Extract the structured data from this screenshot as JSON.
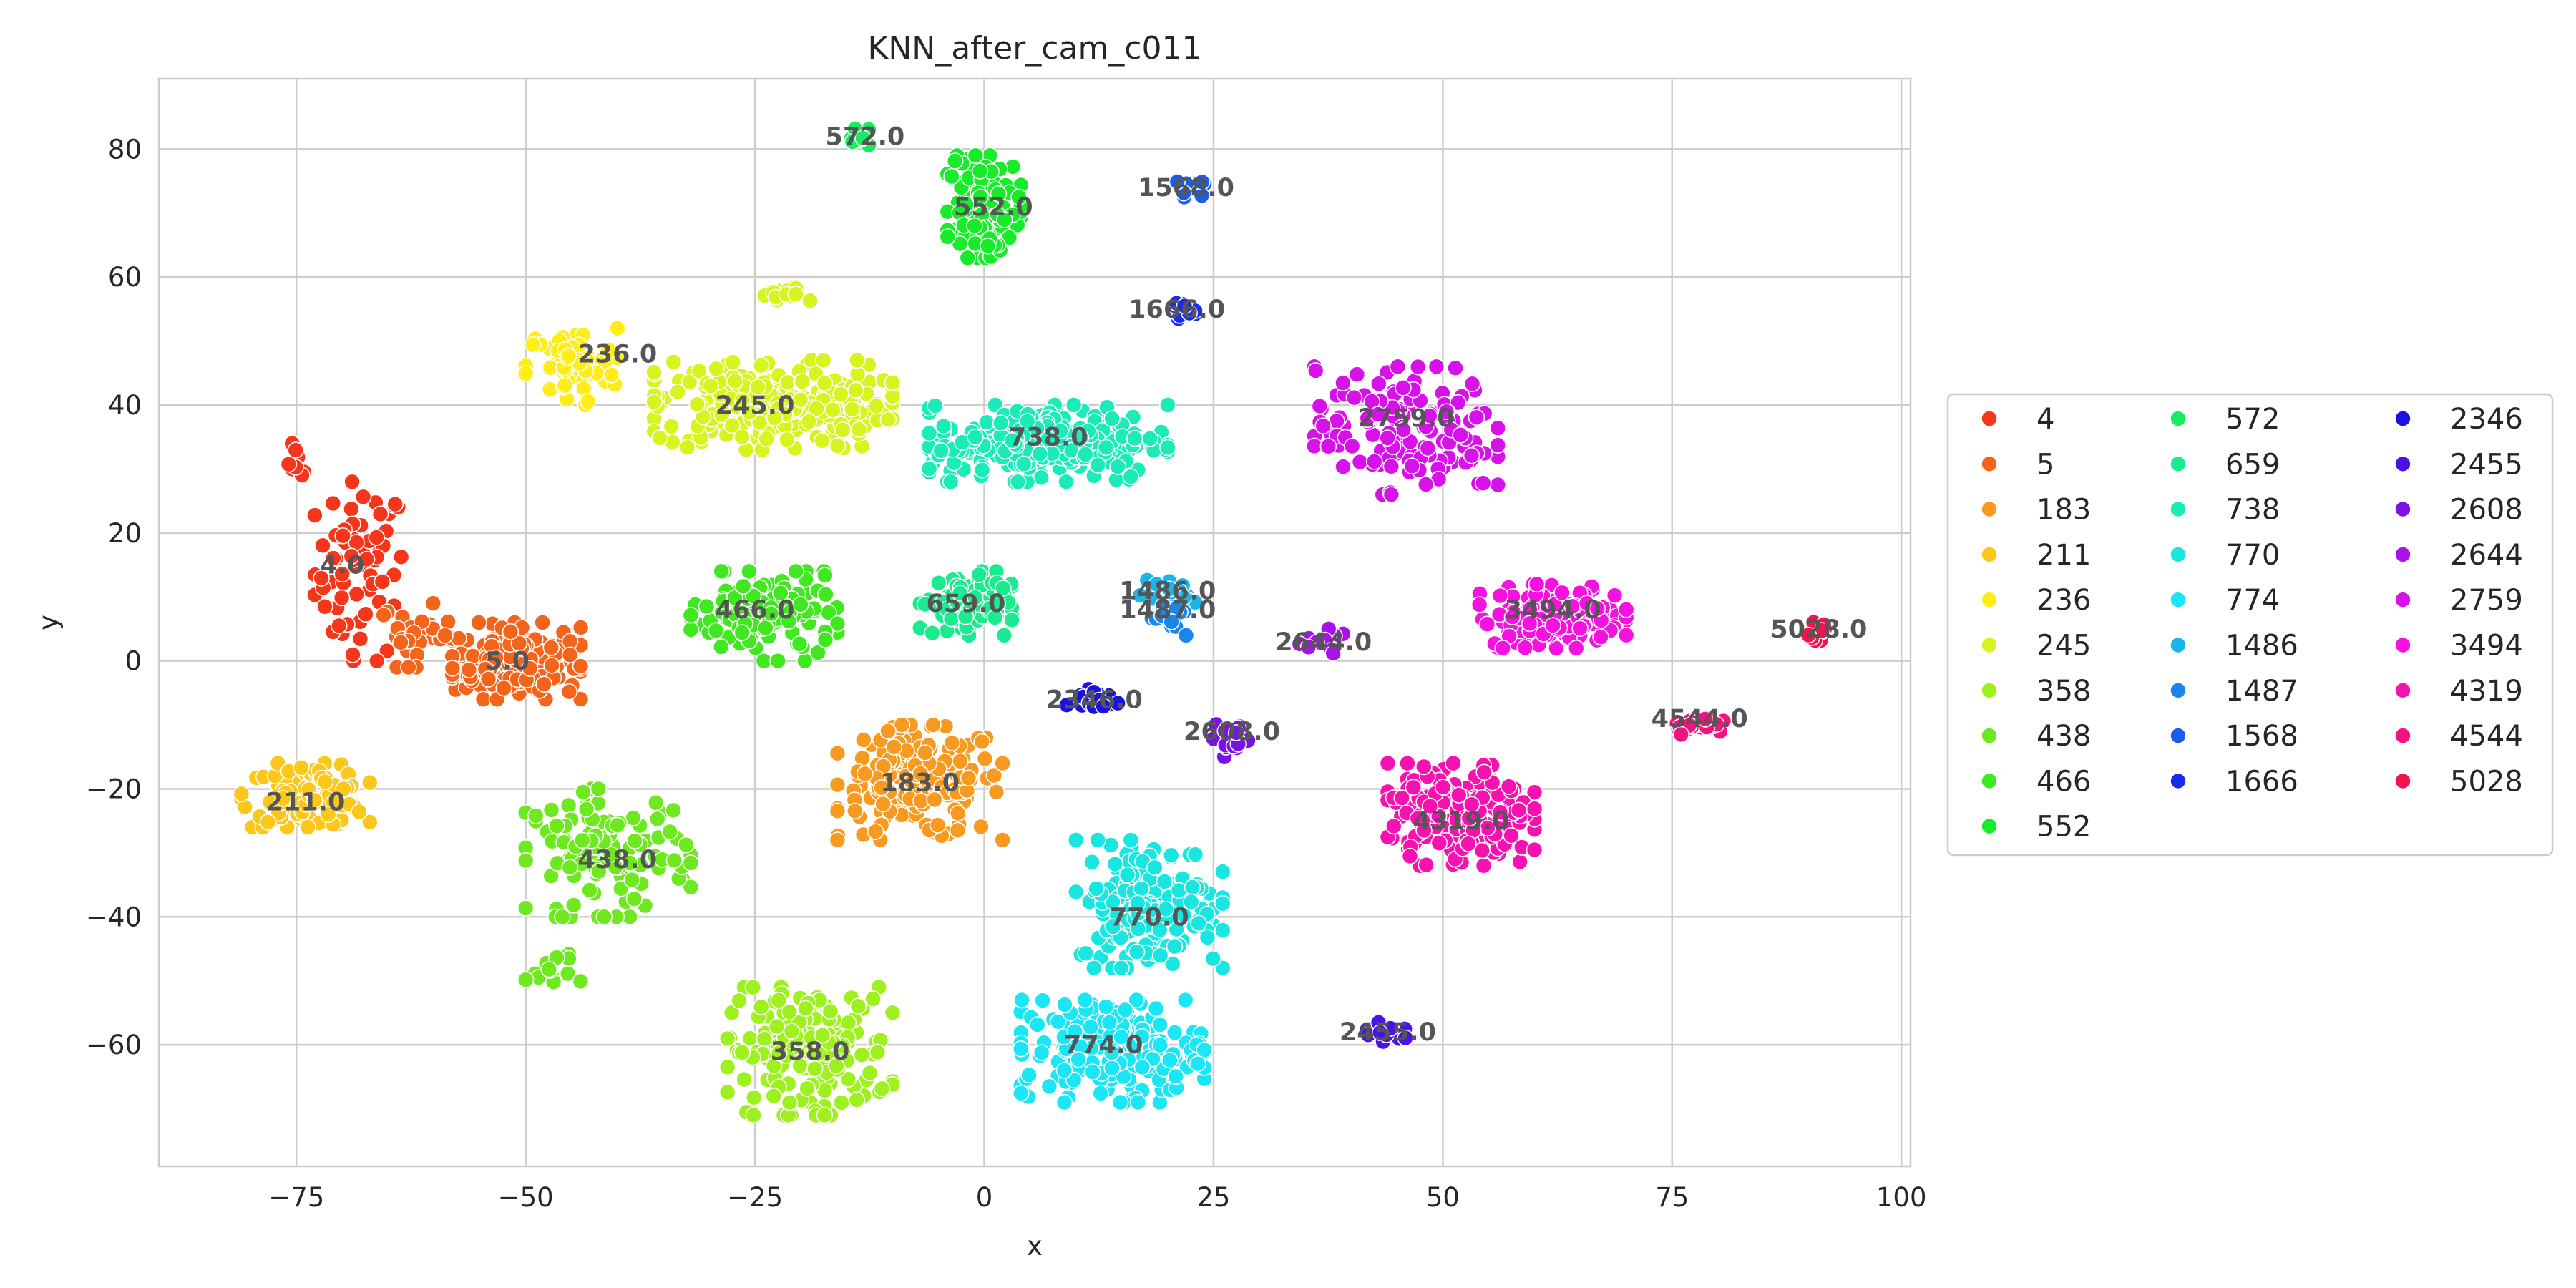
{
  "chart_data": {
    "type": "scatter",
    "title": "KNN_after_cam_c011",
    "xlabel": "x",
    "ylabel": "y",
    "xlim": [
      -90,
      101
    ],
    "ylim": [
      -79,
      91
    ],
    "xticks": [
      -75,
      -50,
      -25,
      0,
      25,
      50,
      75,
      100
    ],
    "yticks": [
      -60,
      -40,
      -20,
      0,
      20,
      40,
      60,
      80
    ],
    "grid": true,
    "legend_position": "right",
    "legend_columns": 3,
    "series": [
      {
        "name": "4",
        "color": "#f5361b",
        "label": "4.0",
        "label_pos": [
          -70,
          15
        ],
        "clusters": [
          {
            "c": [
              -68,
              14
            ],
            "r": [
              5,
              14
            ],
            "n": 70
          },
          {
            "c": [
              -75,
              31
            ],
            "r": [
              1.5,
              3
            ],
            "n": 8
          }
        ]
      },
      {
        "name": "5",
        "color": "#f5641b",
        "label": "5.0",
        "label_pos": [
          -52,
          0
        ],
        "clusters": [
          {
            "c": [
              -51,
              0
            ],
            "r": [
              7,
              6
            ],
            "n": 180
          },
          {
            "c": [
              -62,
              4
            ],
            "r": [
              4,
              5
            ],
            "n": 30
          }
        ]
      },
      {
        "name": "183",
        "color": "#f79a1f",
        "label": "183.0",
        "label_pos": [
          -7,
          -19
        ],
        "clusters": [
          {
            "c": [
              -7,
              -19
            ],
            "r": [
              9,
              9
            ],
            "n": 180
          }
        ]
      },
      {
        "name": "211",
        "color": "#fcc719",
        "label": "211.0",
        "label_pos": [
          -74,
          -22
        ],
        "clusters": [
          {
            "c": [
              -74,
              -21
            ],
            "r": [
              7,
              5
            ],
            "n": 90
          }
        ]
      },
      {
        "name": "236",
        "color": "#ffed1a",
        "label": "236.0",
        "label_pos": [
          -40,
          48
        ],
        "clusters": [
          {
            "c": [
              -45,
              46
            ],
            "r": [
              5,
              6
            ],
            "n": 60
          }
        ]
      },
      {
        "name": "245",
        "color": "#d7f41f",
        "label": "245.0",
        "label_pos": [
          -25,
          40
        ],
        "clusters": [
          {
            "c": [
              -23,
              40
            ],
            "r": [
              13,
              7
            ],
            "n": 260
          },
          {
            "c": [
              -22,
              57
            ],
            "r": [
              3,
              1.5
            ],
            "n": 14
          }
        ]
      },
      {
        "name": "358",
        "color": "#9ef01f",
        "label": "358.0",
        "label_pos": [
          -19,
          -61
        ],
        "clusters": [
          {
            "c": [
              -19,
              -61
            ],
            "r": [
              9,
              10
            ],
            "n": 170
          }
        ]
      },
      {
        "name": "438",
        "color": "#6ee81f",
        "label": "438.0",
        "label_pos": [
          -40,
          -31
        ],
        "clusters": [
          {
            "c": [
              -41,
              -30
            ],
            "r": [
              9,
              10
            ],
            "n": 110
          },
          {
            "c": [
              -47,
              -48
            ],
            "r": [
              3,
              3
            ],
            "n": 14
          }
        ]
      },
      {
        "name": "466",
        "color": "#3fe81f",
        "label": "466.0",
        "label_pos": [
          -25,
          8
        ],
        "clusters": [
          {
            "c": [
              -24,
              7
            ],
            "r": [
              8,
              7
            ],
            "n": 130
          }
        ]
      },
      {
        "name": "552",
        "color": "#17eb2a",
        "label": "552.0",
        "label_pos": [
          1,
          71
        ],
        "clusters": [
          {
            "c": [
              0,
              71
            ],
            "r": [
              4,
              8
            ],
            "n": 120
          }
        ]
      },
      {
        "name": "572",
        "color": "#17eb60",
        "label": "572.0",
        "label_pos": [
          -13,
          82
        ],
        "clusters": [
          {
            "c": [
              -14,
              82
            ],
            "r": [
              1.5,
              1.5
            ],
            "n": 8
          }
        ]
      },
      {
        "name": "659",
        "color": "#1aeb8e",
        "label": "659.0",
        "label_pos": [
          -2,
          9
        ],
        "clusters": [
          {
            "c": [
              -2,
              9
            ],
            "r": [
              5,
              5
            ],
            "n": 90
          }
        ]
      },
      {
        "name": "738",
        "color": "#1aebb8",
        "label": "738.0",
        "label_pos": [
          7,
          35
        ],
        "clusters": [
          {
            "c": [
              7,
              34
            ],
            "r": [
              13,
              6
            ],
            "n": 250
          }
        ]
      },
      {
        "name": "770",
        "color": "#1ae6e1",
        "label": "770.0",
        "label_pos": [
          18,
          -40
        ],
        "clusters": [
          {
            "c": [
              18,
              -38
            ],
            "r": [
              8,
              10
            ],
            "n": 170
          }
        ]
      },
      {
        "name": "774",
        "color": "#1ae6f5",
        "label": "774.0",
        "label_pos": [
          13,
          -60
        ],
        "clusters": [
          {
            "c": [
              14,
              -61
            ],
            "r": [
              10,
              8
            ],
            "n": 190
          }
        ]
      },
      {
        "name": "1486",
        "color": "#1ab6eb",
        "label": "1486.0",
        "label_pos": [
          20,
          11
        ],
        "clusters": [
          {
            "c": [
              20,
              10
            ],
            "r": [
              3,
              4
            ],
            "n": 25
          }
        ]
      },
      {
        "name": "1487",
        "color": "#1a85eb",
        "label": "1487.0",
        "label_pos": [
          20,
          8
        ],
        "clusters": [
          {
            "c": [
              20,
              7
            ],
            "r": [
              2,
              3
            ],
            "n": 15
          }
        ]
      },
      {
        "name": "1568",
        "color": "#1a5ceb",
        "label": "1568.0",
        "label_pos": [
          22,
          74
        ],
        "clusters": [
          {
            "c": [
              22,
              74
            ],
            "r": [
              2,
              1.5
            ],
            "n": 14
          }
        ]
      },
      {
        "name": "1666",
        "color": "#1a2ceb",
        "label": "1666.0",
        "label_pos": [
          21,
          55
        ],
        "clusters": [
          {
            "c": [
              21,
              55
            ],
            "r": [
              2,
              1.5
            ],
            "n": 12
          }
        ]
      },
      {
        "name": "2346",
        "color": "#1a12e0",
        "label": "2346.0",
        "label_pos": [
          12,
          -6
        ],
        "clusters": [
          {
            "c": [
              12,
              -6
            ],
            "r": [
              3,
              2
            ],
            "n": 22
          }
        ]
      },
      {
        "name": "2455",
        "color": "#4a12e8",
        "label": "2455.0",
        "label_pos": [
          44,
          -58
        ],
        "clusters": [
          {
            "c": [
              44,
              -58
            ],
            "r": [
              3,
              1.5
            ],
            "n": 18
          }
        ]
      },
      {
        "name": "2608",
        "color": "#7a12e8",
        "label": "2608.0",
        "label_pos": [
          27,
          -11
        ],
        "clusters": [
          {
            "c": [
              27,
              -12
            ],
            "r": [
              2,
              3
            ],
            "n": 18
          }
        ]
      },
      {
        "name": "2644",
        "color": "#a812e8",
        "label": "2644.0",
        "label_pos": [
          37,
          3
        ],
        "clusters": [
          {
            "c": [
              37,
              3
            ],
            "r": [
              3,
              2
            ],
            "n": 18
          }
        ]
      },
      {
        "name": "2759",
        "color": "#d612e8",
        "label": "2759.0",
        "label_pos": [
          46,
          38
        ],
        "clusters": [
          {
            "c": [
              46,
              36
            ],
            "r": [
              10,
              10
            ],
            "n": 150
          }
        ]
      },
      {
        "name": "3494",
        "color": "#f512e0",
        "label": "3494.0",
        "label_pos": [
          62,
          8
        ],
        "clusters": [
          {
            "c": [
              62,
              7
            ],
            "r": [
              8,
              5
            ],
            "n": 130
          }
        ]
      },
      {
        "name": "4319",
        "color": "#f512b0",
        "label": "4319.0",
        "label_pos": [
          52,
          -25
        ],
        "clusters": [
          {
            "c": [
              52,
              -24
            ],
            "r": [
              8,
              8
            ],
            "n": 190
          }
        ]
      },
      {
        "name": "4544",
        "color": "#f51280",
        "label": "4544.0",
        "label_pos": [
          78,
          -9
        ],
        "clusters": [
          {
            "c": [
              78,
              -10
            ],
            "r": [
              3,
              1.5
            ],
            "n": 25
          }
        ]
      },
      {
        "name": "5028",
        "color": "#f5124f",
        "label": "5028.0",
        "label_pos": [
          91,
          5
        ],
        "clusters": [
          {
            "c": [
              91,
              5
            ],
            "r": [
              1.2,
              1.8
            ],
            "n": 12
          }
        ]
      }
    ]
  }
}
